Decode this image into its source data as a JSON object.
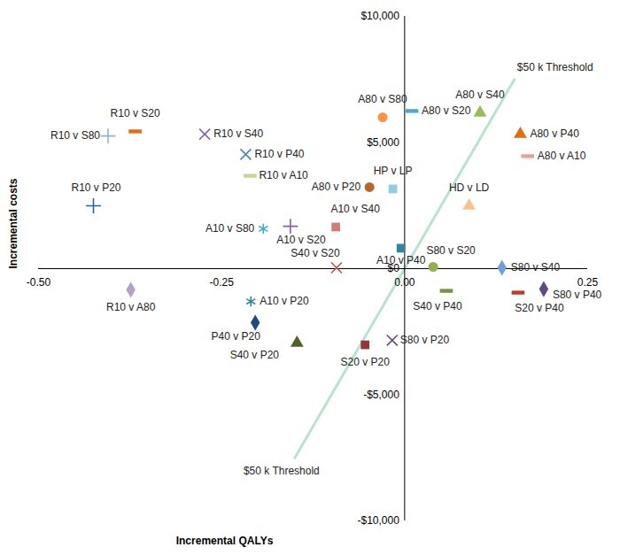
{
  "chart_data": {
    "type": "scatter",
    "x_label": "Incremental QALYs",
    "y_label": "Incremental costs",
    "xlim": [
      -0.5,
      0.25
    ],
    "ylim": [
      -10000,
      10000
    ],
    "xticks": [
      {
        "value": -0.5,
        "label": "-0.50"
      },
      {
        "value": -0.25,
        "label": "-0.25"
      },
      {
        "value": 0,
        "label": "0.00"
      },
      {
        "value": 0.25,
        "label": "0.25"
      }
    ],
    "yticks": [
      {
        "value": -10000,
        "label": "-$10,000"
      },
      {
        "value": -5000,
        "label": "-$5,000"
      },
      {
        "value": 0,
        "label": "$0"
      },
      {
        "value": 5000,
        "label": "$5,000"
      },
      {
        "value": 10000,
        "label": "$10,000"
      }
    ],
    "grid": false,
    "series": [
      {
        "name": "A80 v S80",
        "color": "#f79646",
        "marker": "circle",
        "values": [
          [
            -0.03,
            6000
          ]
        ]
      },
      {
        "name": "A80 v S20",
        "color": "#4bacc6",
        "marker": "dash",
        "values": [
          [
            0.01,
            6250
          ]
        ]
      },
      {
        "name": "A80 v S40",
        "color": "#9bbb59",
        "marker": "triangle",
        "values": [
          [
            0.103,
            6180
          ]
        ]
      },
      {
        "name": "A80 v P40",
        "color": "#e46c0a",
        "marker": "triangle",
        "values": [
          [
            0.158,
            5330
          ]
        ]
      },
      {
        "name": "A80 v A10",
        "color": "#e6a0a0",
        "marker": "dash",
        "values": [
          [
            0.168,
            4460
          ]
        ]
      },
      {
        "name": "HP v LP",
        "color": "#93cddd",
        "marker": "square",
        "values": [
          [
            -0.016,
            3160
          ]
        ]
      },
      {
        "name": "A80 v P20",
        "color": "#b9652b",
        "marker": "circle",
        "values": [
          [
            -0.048,
            3230
          ]
        ]
      },
      {
        "name": "HD v LD",
        "color": "#fac090",
        "marker": "triangle",
        "values": [
          [
            0.088,
            2490
          ]
        ]
      },
      {
        "name": "A10 v S40",
        "color": "#d07a7a",
        "marker": "square",
        "values": [
          [
            -0.094,
            1650
          ]
        ]
      },
      {
        "name": "A10 v P40",
        "color": "#31859c",
        "marker": "square",
        "values": [
          [
            -0.005,
            810
          ]
        ]
      },
      {
        "name": "S80 v S20",
        "color": "#92b14a",
        "marker": "circle",
        "values": [
          [
            0.039,
            70
          ]
        ]
      },
      {
        "name": "S80 v S40",
        "color": "#6f9fd8",
        "marker": "diamond",
        "values": [
          [
            0.133,
            35
          ]
        ]
      },
      {
        "name": "S40 v S20",
        "color": "#c0504d",
        "marker": "x",
        "values": [
          [
            -0.093,
            35
          ]
        ]
      },
      {
        "name": "S40 v P40",
        "color": "#77933c",
        "marker": "dash",
        "values": [
          [
            0.057,
            -880
          ]
        ]
      },
      {
        "name": "S20 v P40",
        "color": "#c0392b",
        "marker": "dash",
        "values": [
          [
            0.155,
            -950
          ]
        ]
      },
      {
        "name": "S80 v P40",
        "color": "#604a7b",
        "marker": "diamond",
        "values": [
          [
            0.19,
            -810
          ]
        ]
      },
      {
        "name": "R10 v S80",
        "color": "#95b3d7",
        "marker": "plus",
        "values": [
          [
            -0.405,
            5260
          ]
        ]
      },
      {
        "name": "R10 v S20",
        "color": "#e46c0a",
        "marker": "dash",
        "values": [
          [
            -0.368,
            5440
          ]
        ]
      },
      {
        "name": "R10 v S40",
        "color": "#8064a2",
        "marker": "x",
        "values": [
          [
            -0.273,
            5330
          ]
        ]
      },
      {
        "name": "R10 v P40",
        "color": "#4f81bd",
        "marker": "x",
        "values": [
          [
            -0.217,
            4530
          ]
        ]
      },
      {
        "name": "R10 v A10",
        "color": "#c3d69b",
        "marker": "dash",
        "values": [
          [
            -0.211,
            3680
          ]
        ]
      },
      {
        "name": "R10 v P20",
        "color": "#2e5fa3",
        "marker": "plus",
        "values": [
          [
            -0.425,
            2490
          ]
        ]
      },
      {
        "name": "A10 v S80",
        "color": "#4bacc6",
        "marker": "asterisk",
        "values": [
          [
            -0.193,
            1580
          ]
        ]
      },
      {
        "name": "A10 v S20",
        "color": "#7f5fa8",
        "marker": "plus",
        "values": [
          [
            -0.156,
            1680
          ]
        ]
      },
      {
        "name": "R10 v A80",
        "color": "#b3a2c7",
        "marker": "diamond",
        "values": [
          [
            -0.374,
            -840
          ]
        ]
      },
      {
        "name": "A10 v P20",
        "color": "#31859c",
        "marker": "asterisk",
        "values": [
          [
            -0.21,
            -1300
          ]
        ]
      },
      {
        "name": "P40 v P20",
        "color": "#1f497d",
        "marker": "diamond",
        "values": [
          [
            -0.204,
            -2140
          ]
        ]
      },
      {
        "name": "S40 v P20",
        "color": "#4f6228",
        "marker": "triangle",
        "values": [
          [
            -0.147,
            -2950
          ]
        ]
      },
      {
        "name": "S20 v P20",
        "color": "#943634",
        "marker": "square",
        "values": [
          [
            -0.054,
            -3020
          ]
        ]
      },
      {
        "name": "S80 v P20",
        "color": "#604a7b",
        "marker": "x",
        "values": [
          [
            -0.017,
            -2840
          ]
        ]
      }
    ],
    "lines": [
      {
        "name": "$50 k Threshold",
        "color": "#b7e4cc",
        "line_style": "solid",
        "x": [
          -0.15,
          0.15
        ],
        "y": [
          -7500,
          7500
        ]
      }
    ]
  }
}
